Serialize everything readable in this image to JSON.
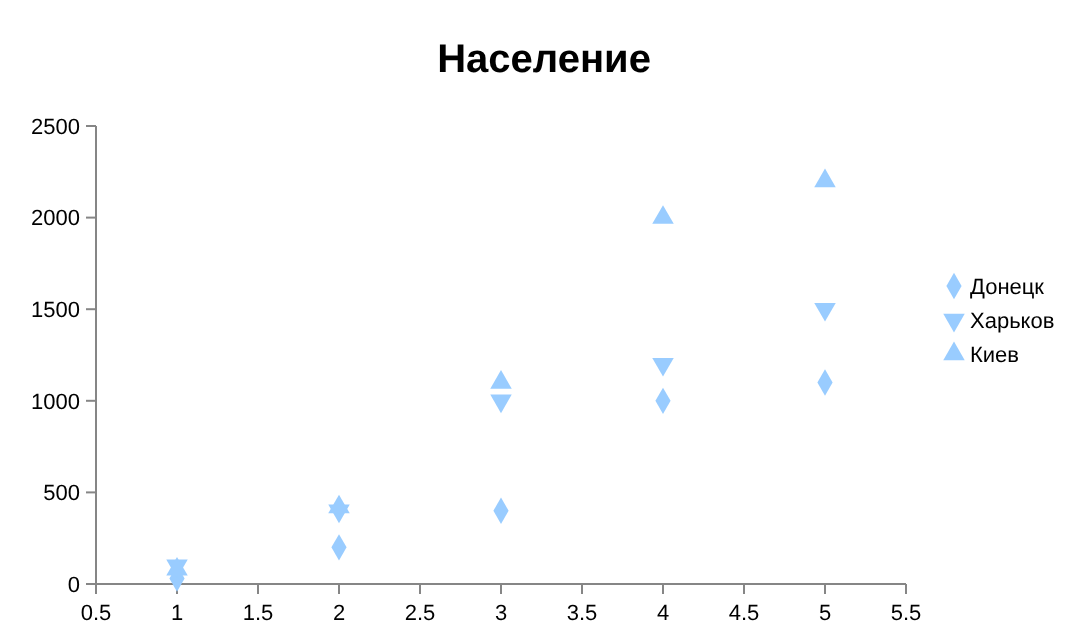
{
  "chart_data": {
    "type": "scatter",
    "title": "Население",
    "x": [
      1,
      2,
      3,
      4,
      5
    ],
    "series": [
      {
        "name": "Донецк",
        "color": "#99ccff",
        "marker": "diamond",
        "values": [
          30,
          200,
          400,
          1000,
          1100
        ]
      },
      {
        "name": "Харьков",
        "color": "#99ccff",
        "marker": "triangle-down",
        "values": [
          100,
          400,
          1000,
          1200,
          1500
        ]
      },
      {
        "name": "Киев",
        "color": "#99ccff",
        "marker": "triangle",
        "values": [
          80,
          420,
          1100,
          2000,
          2200
        ]
      }
    ],
    "xlim": [
      0.5,
      5.5
    ],
    "xticks": [
      0.5,
      1,
      1.5,
      2,
      2.5,
      3,
      3.5,
      4,
      4.5,
      5,
      5.5
    ],
    "ylim": [
      0,
      2500
    ],
    "yticks": [
      0,
      500,
      1000,
      1500,
      2000,
      2500
    ],
    "grid": false,
    "legend": "right"
  }
}
